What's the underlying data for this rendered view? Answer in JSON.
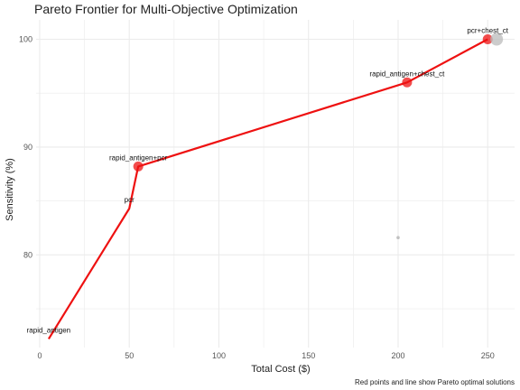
{
  "chart_data": {
    "type": "scatter",
    "title": "Pareto Frontier for Multi-Objective Optimization",
    "xlabel": "Total Cost ($)",
    "ylabel": "Sensitivity (%)",
    "caption": "Red points and line show Pareto optimal solutions",
    "xlim": [
      -2,
      265
    ],
    "ylim": [
      71.4,
      101.8
    ],
    "x_ticks": [
      0,
      50,
      100,
      150,
      200,
      250
    ],
    "y_ticks": [
      80,
      90,
      100
    ],
    "grid": true,
    "colors": {
      "pareto": "#ee1111",
      "dominated": "#bbbbbb",
      "grid": "#ebebeb"
    },
    "points": [
      {
        "label": "rapid_antigen",
        "x": 5,
        "y": 72.2,
        "pareto": true,
        "show_marker": false
      },
      {
        "label": "pcr",
        "x": 50,
        "y": 84.3,
        "pareto": true,
        "show_marker": false
      },
      {
        "label": "rapid_antigen+pcr",
        "x": 55,
        "y": 88.2,
        "pareto": true,
        "show_marker": true
      },
      {
        "label": "rapid_antigen+chest_ct",
        "x": 205,
        "y": 96.0,
        "pareto": true,
        "show_marker": true
      },
      {
        "label": "pcr+chest_ct",
        "x": 250,
        "y": 100.0,
        "pareto": true,
        "show_marker": true
      },
      {
        "label": "",
        "x": 255,
        "y": 100.0,
        "pareto": false,
        "show_marker": true
      },
      {
        "label": "",
        "x": 200,
        "y": 81.6,
        "pareto": false,
        "show_marker": true
      }
    ],
    "pareto_line": [
      {
        "x": 5,
        "y": 72.2
      },
      {
        "x": 50,
        "y": 84.3
      },
      {
        "x": 55,
        "y": 88.2
      },
      {
        "x": 205,
        "y": 96.0
      },
      {
        "x": 250,
        "y": 100.0
      }
    ]
  }
}
